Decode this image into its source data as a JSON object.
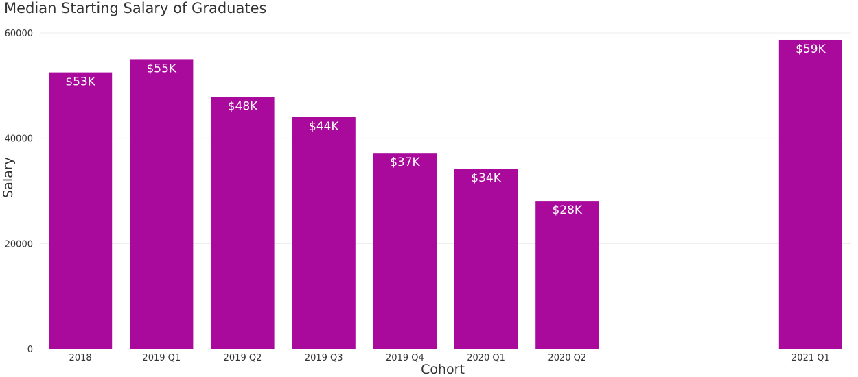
{
  "chart_data": {
    "type": "bar",
    "title": "Median Starting Salary of Graduates",
    "xlabel": "Cohort",
    "ylabel": "Salary",
    "categories": [
      "2018",
      "2019 Q1",
      "2019 Q2",
      "2019 Q3",
      "2019 Q4",
      "2020 Q1",
      "2020 Q2",
      "",
      "",
      "2021 Q1"
    ],
    "values": [
      52500,
      55000,
      47800,
      44000,
      37200,
      34200,
      28100,
      null,
      null,
      58700
    ],
    "data_labels": [
      "$53K",
      "$55K",
      "$48K",
      "$44K",
      "$37K",
      "$34K",
      "$28K",
      "",
      "",
      "$59K"
    ],
    "ylim": [
      0,
      60000
    ],
    "yticks": [
      "0",
      "20000",
      "40000",
      "60000"
    ],
    "ytick_values": [
      0,
      20000,
      40000,
      60000
    ],
    "grid": true,
    "legend": "none",
    "colors": {
      "bar": "#AA0A9C",
      "label": "#ffffff",
      "grid": "#ececec",
      "text": "#333333"
    }
  }
}
